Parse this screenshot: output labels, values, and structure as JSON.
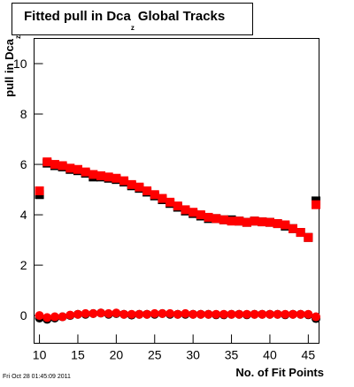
{
  "chart_data": {
    "type": "scatter",
    "title": [
      "Fitted pull in Dca",
      "z",
      "Global Tracks"
    ],
    "ylabel": [
      "pull in Dca",
      "z"
    ],
    "xlabel": "No. of Fit Points",
    "footer": "Fri Oct 28 01:45:09 2011",
    "x": [
      10,
      11,
      12,
      13,
      14,
      15,
      16,
      17,
      18,
      19,
      20,
      21,
      22,
      23,
      24,
      25,
      26,
      27,
      28,
      29,
      30,
      31,
      32,
      33,
      34,
      35,
      36,
      37,
      38,
      39,
      40,
      41,
      42,
      43,
      44,
      45,
      46
    ],
    "series": [
      {
        "name": "sigma-black",
        "marker": "square",
        "color": "#000000",
        "values": [
          4.8,
          6.05,
          5.95,
          5.9,
          5.8,
          5.75,
          5.65,
          5.5,
          5.5,
          5.45,
          5.4,
          5.3,
          5.15,
          5.05,
          4.9,
          4.75,
          4.6,
          4.45,
          4.3,
          4.15,
          4.05,
          3.95,
          3.85,
          3.85,
          3.8,
          3.8,
          3.75,
          3.7,
          3.75,
          3.72,
          3.7,
          3.65,
          3.55,
          3.45,
          3.3,
          3.1,
          4.55
        ]
      },
      {
        "name": "sigma-red",
        "marker": "square",
        "color": "#ff0000",
        "values": [
          4.95,
          6.1,
          6.0,
          5.95,
          5.85,
          5.8,
          5.7,
          5.6,
          5.55,
          5.5,
          5.45,
          5.35,
          5.2,
          5.1,
          4.95,
          4.8,
          4.65,
          4.5,
          4.35,
          4.2,
          4.1,
          4.0,
          3.9,
          3.85,
          3.8,
          3.75,
          3.75,
          3.7,
          3.75,
          3.72,
          3.7,
          3.65,
          3.6,
          3.45,
          3.3,
          3.1,
          4.4
        ]
      },
      {
        "name": "mean-black",
        "marker": "circle",
        "color": "#000000",
        "values": [
          -0.1,
          -0.15,
          -0.1,
          -0.05,
          0.0,
          0.05,
          0.05,
          0.08,
          0.1,
          0.05,
          0.08,
          0.05,
          0.02,
          0.05,
          0.05,
          0.05,
          0.08,
          0.05,
          0.05,
          0.05,
          0.05,
          0.05,
          0.05,
          0.03,
          0.03,
          0.05,
          0.05,
          0.03,
          0.05,
          0.05,
          0.05,
          0.05,
          0.03,
          0.05,
          0.05,
          0.03,
          -0.12
        ]
      },
      {
        "name": "mean-red",
        "marker": "circle",
        "color": "#ff0000",
        "values": [
          0.0,
          -0.08,
          -0.05,
          -0.05,
          0.02,
          0.05,
          0.08,
          0.08,
          0.1,
          0.08,
          0.1,
          0.05,
          0.05,
          0.05,
          0.05,
          0.08,
          0.08,
          0.08,
          0.05,
          0.08,
          0.05,
          0.05,
          0.05,
          0.05,
          0.05,
          0.05,
          0.05,
          0.05,
          0.05,
          0.05,
          0.05,
          0.05,
          0.05,
          0.05,
          0.05,
          0.05,
          -0.05
        ]
      }
    ],
    "xlim": [
      9.3,
      46.4
    ],
    "ylim": [
      -1.1,
      11
    ],
    "xticks": [
      10,
      15,
      20,
      25,
      30,
      35,
      40,
      45
    ],
    "yticks": [
      0,
      2,
      4,
      6,
      8,
      10
    ]
  }
}
